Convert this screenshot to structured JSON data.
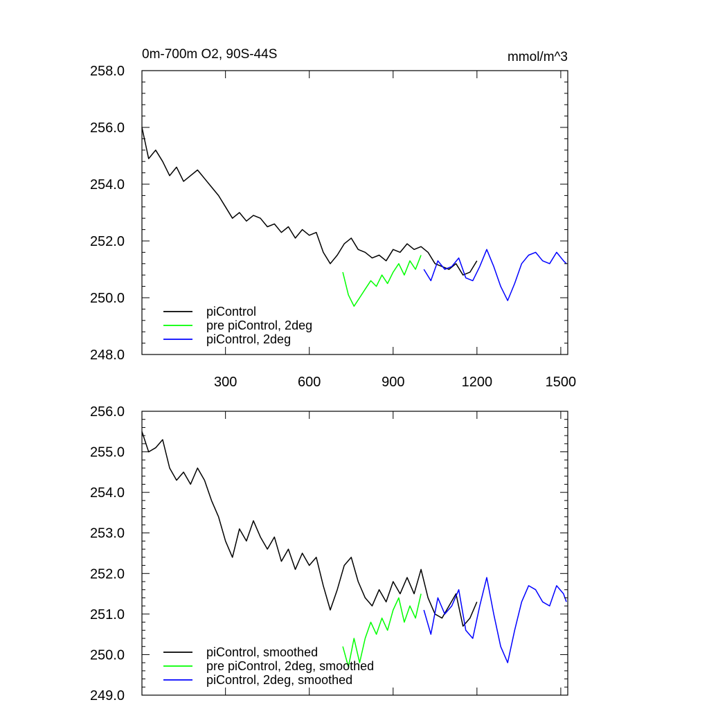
{
  "chart_data": [
    {
      "type": "line",
      "title": "0m-700m O2, 90S-44S",
      "units": "mmol/m^3",
      "xlim": [
        1,
        1525
      ],
      "ylim": [
        248.0,
        258.0
      ],
      "x_ticks": [
        300,
        600,
        900,
        1200,
        1500
      ],
      "x_tick_labels": [
        "300",
        "600",
        "900",
        "1200",
        "1500"
      ],
      "y_ticks": [
        248.0,
        250.0,
        252.0,
        254.0,
        256.0,
        258.0
      ],
      "y_tick_labels": [
        "248.0",
        "250.0",
        "252.0",
        "254.0",
        "256.0",
        "258.0"
      ],
      "grid": false,
      "legend_position": "bottom-left",
      "series": [
        {
          "name": "piControl",
          "color": "#000000",
          "x": [
            1,
            25,
            50,
            75,
            100,
            125,
            150,
            175,
            200,
            225,
            250,
            275,
            300,
            325,
            350,
            375,
            400,
            425,
            450,
            475,
            500,
            525,
            550,
            575,
            600,
            625,
            650,
            675,
            700,
            725,
            750,
            775,
            800,
            825,
            850,
            875,
            900,
            925,
            950,
            975,
            1000,
            1025,
            1050,
            1075,
            1100,
            1125,
            1150,
            1175,
            1200
          ],
          "y": [
            256.0,
            254.9,
            255.2,
            254.8,
            254.3,
            254.6,
            254.1,
            254.3,
            254.5,
            254.2,
            253.9,
            253.6,
            253.2,
            252.8,
            253.0,
            252.7,
            252.9,
            252.8,
            252.5,
            252.6,
            252.3,
            252.5,
            252.1,
            252.4,
            252.2,
            252.3,
            251.6,
            251.2,
            251.5,
            251.9,
            252.1,
            251.7,
            251.6,
            251.4,
            251.5,
            251.3,
            251.7,
            251.6,
            251.9,
            251.7,
            251.8,
            251.6,
            251.2,
            251.1,
            251.0,
            251.2,
            250.8,
            250.9,
            251.3
          ]
        },
        {
          "name": "pre piControl, 2deg",
          "color": "#00ff00",
          "x": [
            720,
            740,
            760,
            780,
            800,
            820,
            840,
            860,
            880,
            900,
            920,
            940,
            960,
            980,
            1000
          ],
          "y": [
            250.9,
            250.1,
            249.7,
            250.0,
            250.3,
            250.6,
            250.4,
            250.8,
            250.5,
            250.9,
            251.2,
            250.8,
            251.3,
            251.0,
            251.5
          ]
        },
        {
          "name": "piControl, 2deg",
          "color": "#0000ff",
          "x": [
            1010,
            1035,
            1060,
            1085,
            1110,
            1135,
            1160,
            1185,
            1210,
            1235,
            1260,
            1285,
            1310,
            1335,
            1360,
            1385,
            1410,
            1435,
            1460,
            1485,
            1510,
            1520
          ],
          "y": [
            251.0,
            250.6,
            251.3,
            251.0,
            251.1,
            251.4,
            250.7,
            250.6,
            251.1,
            251.7,
            251.1,
            250.4,
            249.9,
            250.5,
            251.2,
            251.5,
            251.6,
            251.3,
            251.2,
            251.6,
            251.3,
            251.2
          ]
        }
      ]
    },
    {
      "type": "line",
      "xlim": [
        1,
        1525
      ],
      "ylim": [
        249.0,
        256.0
      ],
      "x_ticks": [
        300,
        600,
        900,
        1200,
        1500
      ],
      "y_ticks": [
        249.0,
        250.0,
        251.0,
        252.0,
        253.0,
        254.0,
        255.0,
        256.0
      ],
      "y_tick_labels": [
        "249.0",
        "250.0",
        "251.0",
        "252.0",
        "253.0",
        "254.0",
        "255.0",
        "256.0"
      ],
      "grid": false,
      "legend_position": "bottom-left",
      "series": [
        {
          "name": "piControl, smoothed",
          "color": "#000000",
          "x": [
            1,
            25,
            50,
            75,
            100,
            125,
            150,
            175,
            200,
            225,
            250,
            275,
            300,
            325,
            350,
            375,
            400,
            425,
            450,
            475,
            500,
            525,
            550,
            575,
            600,
            625,
            650,
            675,
            700,
            725,
            750,
            775,
            800,
            825,
            850,
            875,
            900,
            925,
            950,
            975,
            1000,
            1025,
            1050,
            1075,
            1100,
            1125,
            1150,
            1175,
            1200
          ],
          "y": [
            255.5,
            255.0,
            255.1,
            255.3,
            254.6,
            254.3,
            254.5,
            254.2,
            254.6,
            254.3,
            253.8,
            253.4,
            252.8,
            252.4,
            253.1,
            252.8,
            253.3,
            252.9,
            252.6,
            252.9,
            252.3,
            252.6,
            252.1,
            252.5,
            252.2,
            252.4,
            251.7,
            251.1,
            251.6,
            252.2,
            252.4,
            251.8,
            251.4,
            251.2,
            251.6,
            251.3,
            251.8,
            251.5,
            251.9,
            251.5,
            252.1,
            251.4,
            251.0,
            250.9,
            251.2,
            251.5,
            250.7,
            250.9,
            251.3
          ]
        },
        {
          "name": "pre piControl, 2deg, smoothed",
          "color": "#00ff00",
          "x": [
            720,
            740,
            760,
            780,
            800,
            820,
            840,
            860,
            880,
            900,
            920,
            940,
            960,
            980,
            1000
          ],
          "y": [
            250.2,
            249.7,
            250.4,
            249.8,
            250.4,
            250.8,
            250.5,
            250.9,
            250.6,
            251.1,
            251.4,
            250.8,
            251.2,
            250.9,
            251.5
          ]
        },
        {
          "name": "piControl, 2deg, smoothed",
          "color": "#0000ff",
          "x": [
            1010,
            1035,
            1060,
            1085,
            1110,
            1135,
            1160,
            1185,
            1210,
            1235,
            1260,
            1285,
            1310,
            1335,
            1360,
            1385,
            1410,
            1435,
            1460,
            1485,
            1510,
            1520
          ],
          "y": [
            251.1,
            250.5,
            251.4,
            251.0,
            251.2,
            251.6,
            250.6,
            250.4,
            251.2,
            251.9,
            251.0,
            250.2,
            249.8,
            250.6,
            251.3,
            251.7,
            251.6,
            251.3,
            251.2,
            251.7,
            251.5,
            251.3
          ]
        }
      ]
    }
  ]
}
